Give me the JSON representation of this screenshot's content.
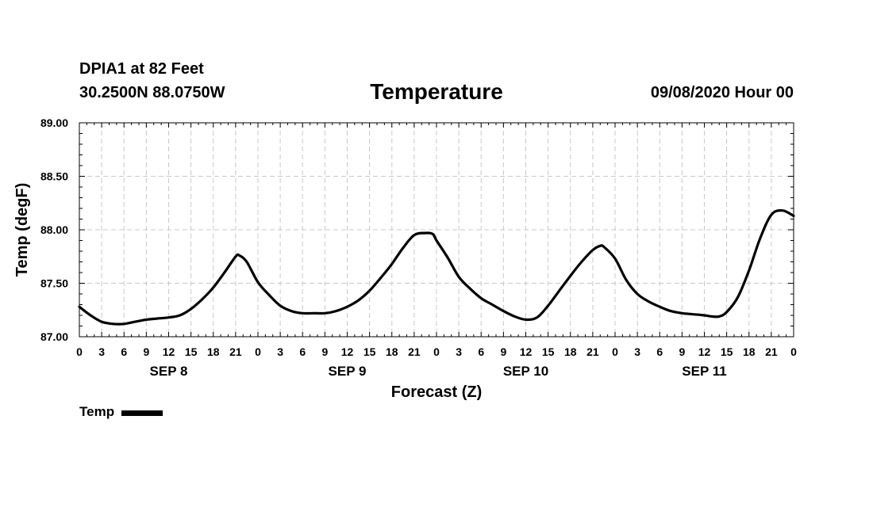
{
  "header": {
    "station": "DPIA1 at 82 Feet",
    "coordinates": "30.2500N 88.0750W",
    "run_time": "09/08/2020 Hour 00"
  },
  "legend": {
    "label": "Temp"
  },
  "colors": {
    "line": "#000000",
    "grid": "#c8c8c8"
  },
  "chart_data": {
    "type": "line",
    "title": "Temperature",
    "xlabel": "Forecast (Z)",
    "ylabel": "Temp (degF)",
    "xlim": [
      0,
      96
    ],
    "ylim": [
      87.0,
      89.0
    ],
    "x_ticks": [
      0,
      3,
      6,
      9,
      12,
      15,
      18,
      21,
      24,
      27,
      30,
      33,
      36,
      39,
      42,
      45,
      48,
      51,
      54,
      57,
      60,
      63,
      66,
      69,
      72,
      75,
      78,
      81,
      84,
      87,
      90,
      93,
      96
    ],
    "x_tick_labels": [
      "0",
      "3",
      "6",
      "9",
      "12",
      "15",
      "18",
      "21",
      "0",
      "3",
      "6",
      "9",
      "12",
      "15",
      "18",
      "21",
      "0",
      "3",
      "6",
      "9",
      "12",
      "15",
      "18",
      "21",
      "0",
      "3",
      "6",
      "9",
      "12",
      "15",
      "18",
      "21",
      "0"
    ],
    "y_ticks": [
      87.0,
      87.5,
      88.0,
      88.5,
      89.0
    ],
    "y_tick_labels": [
      "87.00",
      "87.50",
      "88.00",
      "88.50",
      "89.00"
    ],
    "day_labels": [
      {
        "label": "SEP 8",
        "x": 12
      },
      {
        "label": "SEP 9",
        "x": 36
      },
      {
        "label": "SEP 10",
        "x": 60
      },
      {
        "label": "SEP 11",
        "x": 84
      }
    ],
    "grid": true,
    "series": [
      {
        "name": "Temp",
        "x": [
          0,
          1.5,
          3,
          4.5,
          6,
          7.5,
          9,
          10.5,
          12,
          13.5,
          15,
          16.5,
          18,
          19.5,
          21,
          21.5,
          22.5,
          24,
          25.5,
          27,
          28.5,
          30,
          31.5,
          33,
          34.5,
          36,
          37.5,
          39,
          40.5,
          42,
          43.5,
          45,
          46.5,
          47.5,
          48,
          49.5,
          51,
          52.5,
          54,
          55.5,
          57,
          58.5,
          60,
          61.5,
          63,
          64.5,
          66,
          67.5,
          69,
          70,
          70.5,
          72,
          73.5,
          75,
          76.5,
          78,
          79.5,
          81,
          82.5,
          84,
          85,
          86,
          87,
          88.5,
          90,
          91.5,
          93,
          94.5,
          96
        ],
        "values": [
          87.28,
          87.2,
          87.14,
          87.12,
          87.12,
          87.14,
          87.16,
          87.17,
          87.18,
          87.2,
          87.26,
          87.35,
          87.46,
          87.6,
          87.75,
          87.76,
          87.7,
          87.51,
          87.39,
          87.29,
          87.24,
          87.22,
          87.22,
          87.22,
          87.24,
          87.28,
          87.34,
          87.43,
          87.55,
          87.68,
          87.83,
          87.95,
          87.97,
          87.96,
          87.9,
          87.74,
          87.56,
          87.45,
          87.36,
          87.3,
          87.24,
          87.19,
          87.16,
          87.18,
          87.29,
          87.43,
          87.57,
          87.7,
          87.81,
          87.85,
          87.84,
          87.73,
          87.53,
          87.4,
          87.33,
          87.28,
          87.24,
          87.22,
          87.21,
          87.2,
          87.19,
          87.19,
          87.23,
          87.37,
          87.62,
          87.92,
          88.14,
          88.18,
          88.13
        ]
      }
    ]
  }
}
